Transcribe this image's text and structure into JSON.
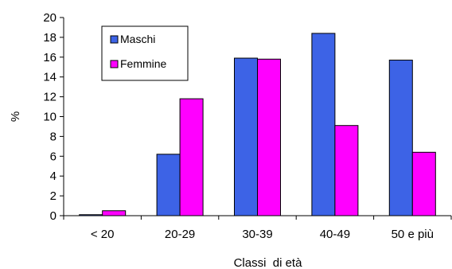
{
  "chart_data": {
    "type": "bar",
    "categories": [
      "< 20",
      "20-29",
      "30-39",
      "40-49",
      "50 e più"
    ],
    "series": [
      {
        "name": "Maschi",
        "color": "#3d63e6",
        "values": [
          0.1,
          6.2,
          15.9,
          18.4,
          15.7
        ]
      },
      {
        "name": "Femmine",
        "color": "#ff00ff",
        "values": [
          0.5,
          11.8,
          15.8,
          9.1,
          6.4
        ]
      }
    ],
    "xlabel": "Classi  di età",
    "ylabel": "%",
    "ylim": [
      0,
      20
    ],
    "yticks": [
      0,
      2,
      4,
      6,
      8,
      10,
      12,
      14,
      16,
      18,
      20
    ],
    "grid": false,
    "legend": "top-left"
  }
}
